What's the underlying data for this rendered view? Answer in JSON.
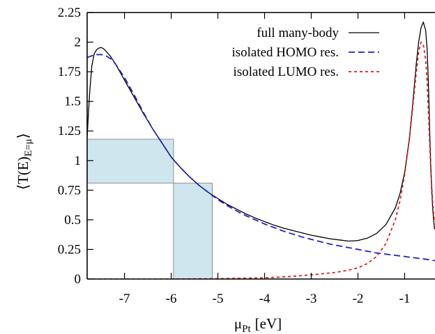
{
  "chart_data": {
    "type": "line",
    "xlabel": "μ",
    "xlabel_sub": "Pt",
    "xlabel_unit": "[eV]",
    "ylabel_parts": [
      "⟨T(E)",
      "E=μ",
      "⟩"
    ],
    "xlim": [
      -7.8,
      -0.35
    ],
    "ylim": [
      0,
      2.25
    ],
    "x_ticks": [
      -7,
      -6,
      -5,
      -4,
      -3,
      -2,
      -1
    ],
    "x_tick_labels": [
      "-7",
      "-6",
      "-5",
      "-4",
      "-3",
      "-2",
      "-1"
    ],
    "y_ticks": [
      0,
      0.25,
      0.5,
      0.75,
      1,
      1.25,
      1.5,
      1.75,
      2,
      2.25
    ],
    "y_tick_labels": [
      "0",
      "0.25",
      "0.5",
      "0.75",
      "1",
      "1.25",
      "1.5",
      "1.75",
      "2",
      "2.25"
    ],
    "grid": false,
    "legend_position": "top-right",
    "series": [
      {
        "name": "full many-body",
        "color": "#000000",
        "dash": "solid",
        "x": [
          -7.8,
          -7.75,
          -7.7,
          -7.65,
          -7.6,
          -7.55,
          -7.5,
          -7.45,
          -7.4,
          -7.3,
          -7.2,
          -7.1,
          -7.0,
          -6.8,
          -6.6,
          -6.4,
          -6.2,
          -6.0,
          -5.8,
          -5.6,
          -5.4,
          -5.2,
          -5.0,
          -4.8,
          -4.6,
          -4.4,
          -4.2,
          -4.0,
          -3.8,
          -3.6,
          -3.4,
          -3.2,
          -3.0,
          -2.8,
          -2.6,
          -2.4,
          -2.2,
          -2.0,
          -1.8,
          -1.6,
          -1.4,
          -1.2,
          -1.1,
          -1.0,
          -0.9,
          -0.85,
          -0.8,
          -0.75,
          -0.7,
          -0.65,
          -0.6,
          -0.55,
          -0.52,
          -0.5,
          -0.48,
          -0.46,
          -0.44,
          -0.42,
          -0.4,
          -0.38,
          -0.36
        ],
        "y": [
          1.2,
          1.55,
          1.8,
          1.9,
          1.935,
          1.95,
          1.955,
          1.945,
          1.925,
          1.88,
          1.82,
          1.75,
          1.68,
          1.54,
          1.4,
          1.27,
          1.15,
          1.03,
          0.94,
          0.86,
          0.79,
          0.73,
          0.68,
          0.63,
          0.59,
          0.55,
          0.515,
          0.485,
          0.455,
          0.43,
          0.41,
          0.39,
          0.37,
          0.355,
          0.34,
          0.33,
          0.32,
          0.325,
          0.345,
          0.385,
          0.46,
          0.6,
          0.72,
          0.9,
          1.18,
          1.38,
          1.6,
          1.82,
          2.0,
          2.12,
          2.17,
          2.1,
          1.95,
          1.75,
          1.5,
          1.2,
          0.95,
          0.75,
          0.6,
          0.5,
          0.42
        ]
      },
      {
        "name": "isolated HOMO res.",
        "color": "#1f1fd0",
        "dash": "dashed",
        "x": [
          -7.8,
          -7.7,
          -7.6,
          -7.5,
          -7.4,
          -7.3,
          -7.2,
          -7.1,
          -7.0,
          -6.8,
          -6.6,
          -6.4,
          -6.2,
          -6.0,
          -5.8,
          -5.6,
          -5.4,
          -5.2,
          -5.0,
          -4.8,
          -4.6,
          -4.4,
          -4.2,
          -4.0,
          -3.8,
          -3.6,
          -3.4,
          -3.2,
          -3.0,
          -2.8,
          -2.6,
          -2.4,
          -2.2,
          -2.0,
          -1.8,
          -1.6,
          -1.4,
          -1.2,
          -1.0,
          -0.8,
          -0.6,
          -0.35
        ],
        "y": [
          1.87,
          1.885,
          1.895,
          1.895,
          1.885,
          1.86,
          1.82,
          1.76,
          1.7,
          1.56,
          1.41,
          1.27,
          1.15,
          1.03,
          0.94,
          0.86,
          0.79,
          0.73,
          0.67,
          0.62,
          0.575,
          0.535,
          0.5,
          0.465,
          0.435,
          0.405,
          0.38,
          0.355,
          0.335,
          0.315,
          0.295,
          0.28,
          0.265,
          0.25,
          0.235,
          0.22,
          0.21,
          0.2,
          0.19,
          0.18,
          0.17,
          0.155
        ]
      },
      {
        "name": "isolated LUMO res.",
        "color": "#e01a1a",
        "dash": "dotted",
        "x": [
          -7.8,
          -6.0,
          -5.0,
          -4.0,
          -3.5,
          -3.0,
          -2.5,
          -2.2,
          -2.0,
          -1.8,
          -1.6,
          -1.4,
          -1.2,
          -1.1,
          -1.0,
          -0.9,
          -0.8,
          -0.75,
          -0.7,
          -0.65,
          -0.6,
          -0.55,
          -0.52,
          -0.5,
          -0.48,
          -0.46,
          -0.44,
          -0.42,
          -0.4,
          -0.38,
          -0.36
        ],
        "y": [
          0.0,
          0.0,
          0.003,
          0.01,
          0.02,
          0.035,
          0.055,
          0.075,
          0.095,
          0.13,
          0.19,
          0.3,
          0.5,
          0.66,
          0.88,
          1.18,
          1.55,
          1.75,
          1.92,
          2.0,
          1.98,
          1.85,
          1.68,
          1.5,
          1.3,
          1.1,
          0.93,
          0.78,
          0.66,
          0.56,
          0.48
        ]
      }
    ],
    "shaded_regions": [
      {
        "x": [
          -7.8,
          -5.95
        ],
        "y": [
          0.81,
          1.18
        ]
      },
      {
        "x": [
          -5.95,
          -5.12
        ],
        "y": [
          0,
          0.81
        ]
      }
    ],
    "guide_lines": [
      {
        "x": [
          -7.8,
          -5.95
        ],
        "y": [
          1.18,
          1.18
        ]
      },
      {
        "x": [
          -7.8,
          -5.12
        ],
        "y": [
          0.81,
          0.81
        ]
      },
      {
        "x": [
          -5.95,
          -5.95
        ],
        "y": [
          0,
          1.18
        ]
      },
      {
        "x": [
          -5.12,
          -5.12
        ],
        "y": [
          0,
          0.81
        ]
      }
    ],
    "shade_color": "#cfe6ee",
    "guide_color": "#8c8c8c"
  }
}
